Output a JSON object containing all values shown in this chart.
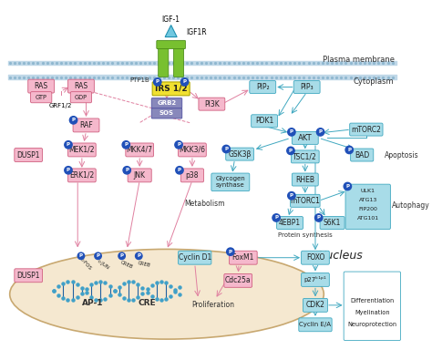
{
  "bg_color": "#ffffff",
  "pink_box_color": "#f5b8cc",
  "pink_box_edge": "#d06080",
  "cyan_box_color": "#a8dce8",
  "cyan_box_edge": "#40a8c0",
  "yellow_box_color": "#f0e030",
  "yellow_box_edge": "#b0a800",
  "purple_box_color": "#8888bb",
  "purple_box_edge": "#5050a0",
  "green_color": "#78c030",
  "green_edge": "#408010",
  "blue_P": "#2050b8",
  "membrane_fill": "#c0d8e8",
  "membrane_dot": "#90b8d0",
  "nucleus_fill": "#f5e8d0",
  "nucleus_edge": "#c8a870",
  "pink_arrow": "#e080a0",
  "cyan_arrow": "#40a8c0",
  "plasma_membrane_label": "Plasma membrane",
  "cytoplasm_label": "Cytoplasm",
  "nucleus_label": "Nucleus"
}
